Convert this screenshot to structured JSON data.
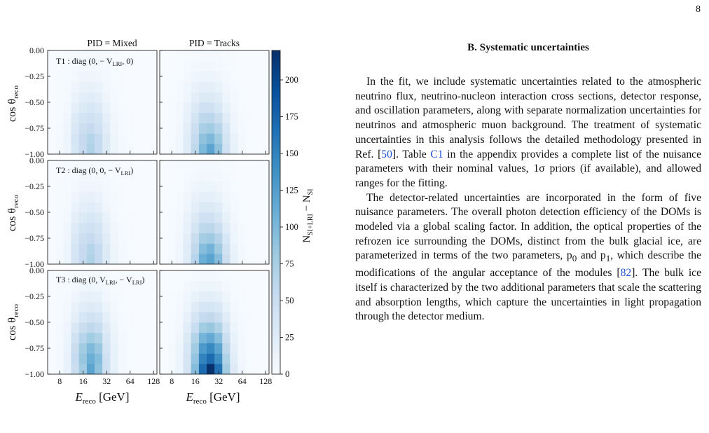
{
  "page_number": "8",
  "figure": {
    "column_titles": [
      "PID = Mixed",
      "PID = Tracks"
    ],
    "panel_labels": [
      {
        "prefix": "T1 : diag (0, − V",
        "sub": "LRI",
        "suffix": ", 0)"
      },
      {
        "prefix": "T2 : diag (0, 0, − V",
        "sub": "LRI",
        "suffix": ")"
      },
      {
        "prefix": "T3 : diag (0, V",
        "sub": "LRI",
        "suffix": ", − V",
        "sub2": "LRI",
        "suffix2": ")"
      }
    ],
    "y_axis_label": {
      "main": "cos θ",
      "sub": "reco"
    },
    "x_axis_label": {
      "main": "E",
      "sub": "reco",
      "unit": " [GeV]"
    },
    "colorbar_label": {
      "main": "N",
      "sub1": "SI+LRI",
      "mid": " − N",
      "sub2": "SI"
    }
  },
  "chart_data": {
    "type": "heatmap",
    "x_edges_gev": [
      5.6,
      7.1,
      8.9,
      11.2,
      14.1,
      17.8,
      22.4,
      28.2,
      35.5,
      44.7,
      56.2,
      70.8,
      89.1,
      112.2,
      141.3
    ],
    "x_ticks": [
      8,
      16,
      32,
      64,
      128
    ],
    "y_edges": [
      -1.0,
      -0.9,
      -0.8,
      -0.7,
      -0.6,
      -0.5,
      -0.4,
      -0.3,
      -0.2,
      -0.1,
      0.0
    ],
    "y_ticks": [
      "0.00",
      "−0.25",
      "−0.50",
      "−0.75",
      "−1.00"
    ],
    "colorbar": {
      "min": 0,
      "max": 220,
      "ticks": [
        0,
        25,
        50,
        75,
        100,
        125,
        150,
        175,
        200
      ],
      "colormap": "Blues"
    },
    "panels": [
      {
        "row": 1,
        "column": "PID = Mixed",
        "values": [
          [
            0,
            3,
            10,
            35,
            55,
            70,
            55,
            30,
            12,
            5,
            2,
            0,
            0,
            0
          ],
          [
            0,
            3,
            12,
            38,
            55,
            65,
            55,
            30,
            12,
            5,
            2,
            0,
            0,
            0
          ],
          [
            0,
            3,
            10,
            32,
            48,
            55,
            45,
            25,
            10,
            4,
            1,
            0,
            0,
            0
          ],
          [
            0,
            2,
            8,
            28,
            40,
            45,
            40,
            20,
            8,
            3,
            1,
            0,
            0,
            0
          ],
          [
            0,
            2,
            6,
            20,
            30,
            35,
            30,
            15,
            6,
            2,
            1,
            0,
            0,
            0
          ],
          [
            0,
            1,
            4,
            14,
            22,
            25,
            20,
            10,
            4,
            2,
            0,
            0,
            0,
            0
          ],
          [
            0,
            1,
            3,
            10,
            15,
            17,
            14,
            7,
            3,
            1,
            0,
            0,
            0,
            0
          ],
          [
            0,
            1,
            2,
            6,
            10,
            10,
            9,
            5,
            2,
            1,
            0,
            0,
            0,
            0
          ],
          [
            0,
            0,
            1,
            4,
            6,
            6,
            5,
            3,
            1,
            0,
            0,
            0,
            0,
            0
          ],
          [
            0,
            0,
            1,
            2,
            3,
            3,
            3,
            2,
            1,
            0,
            0,
            0,
            0,
            0
          ]
        ]
      },
      {
        "row": 1,
        "column": "PID = Tracks",
        "values": [
          [
            0,
            2,
            8,
            25,
            60,
            100,
            120,
            90,
            45,
            18,
            6,
            2,
            0,
            0
          ],
          [
            0,
            2,
            8,
            25,
            55,
            90,
            100,
            80,
            40,
            15,
            5,
            1,
            0,
            0
          ],
          [
            0,
            2,
            7,
            22,
            48,
            75,
            80,
            65,
            35,
            12,
            4,
            1,
            0,
            0
          ],
          [
            0,
            1,
            6,
            18,
            40,
            60,
            62,
            50,
            25,
            10,
            3,
            1,
            0,
            0
          ],
          [
            0,
            1,
            5,
            15,
            30,
            45,
            45,
            35,
            18,
            7,
            2,
            0,
            0,
            0
          ],
          [
            0,
            1,
            4,
            10,
            22,
            30,
            30,
            25,
            12,
            5,
            2,
            0,
            0,
            0
          ],
          [
            0,
            1,
            3,
            8,
            15,
            20,
            20,
            16,
            8,
            3,
            1,
            0,
            0,
            0
          ],
          [
            0,
            0,
            2,
            5,
            10,
            12,
            12,
            10,
            5,
            2,
            1,
            0,
            0,
            0
          ],
          [
            0,
            0,
            1,
            3,
            6,
            7,
            7,
            6,
            3,
            1,
            0,
            0,
            0,
            0
          ],
          [
            0,
            0,
            1,
            2,
            3,
            4,
            4,
            3,
            2,
            1,
            0,
            0,
            0,
            0
          ]
        ]
      },
      {
        "row": 2,
        "column": "PID = Mixed",
        "values": [
          [
            0,
            3,
            12,
            38,
            55,
            70,
            55,
            30,
            12,
            5,
            2,
            0,
            0,
            0
          ],
          [
            0,
            3,
            12,
            38,
            55,
            65,
            55,
            30,
            12,
            5,
            2,
            0,
            0,
            0
          ],
          [
            0,
            3,
            10,
            32,
            48,
            55,
            45,
            25,
            10,
            4,
            1,
            0,
            0,
            0
          ],
          [
            0,
            2,
            8,
            28,
            40,
            45,
            40,
            20,
            8,
            3,
            1,
            0,
            0,
            0
          ],
          [
            0,
            2,
            6,
            20,
            30,
            35,
            30,
            15,
            6,
            2,
            1,
            0,
            0,
            0
          ],
          [
            0,
            1,
            4,
            14,
            22,
            25,
            20,
            10,
            4,
            2,
            0,
            0,
            0,
            0
          ],
          [
            0,
            1,
            3,
            10,
            15,
            17,
            14,
            7,
            3,
            1,
            0,
            0,
            0,
            0
          ],
          [
            0,
            1,
            2,
            6,
            10,
            10,
            9,
            5,
            2,
            1,
            0,
            0,
            0,
            0
          ],
          [
            0,
            0,
            1,
            4,
            6,
            6,
            5,
            3,
            1,
            0,
            0,
            0,
            0,
            0
          ],
          [
            0,
            0,
            1,
            2,
            3,
            3,
            3,
            2,
            1,
            0,
            0,
            0,
            0,
            0
          ]
        ]
      },
      {
        "row": 2,
        "column": "PID = Tracks",
        "values": [
          [
            0,
            2,
            8,
            25,
            65,
            110,
            120,
            95,
            48,
            18,
            6,
            2,
            0,
            0
          ],
          [
            0,
            2,
            8,
            25,
            58,
            95,
            105,
            82,
            42,
            15,
            5,
            1,
            0,
            0
          ],
          [
            0,
            2,
            7,
            22,
            50,
            78,
            82,
            66,
            35,
            12,
            4,
            1,
            0,
            0
          ],
          [
            0,
            1,
            6,
            18,
            40,
            60,
            62,
            50,
            25,
            10,
            3,
            1,
            0,
            0
          ],
          [
            0,
            1,
            5,
            15,
            30,
            45,
            45,
            35,
            18,
            7,
            2,
            0,
            0,
            0
          ],
          [
            0,
            1,
            4,
            10,
            22,
            30,
            30,
            25,
            12,
            5,
            2,
            0,
            0,
            0
          ],
          [
            0,
            1,
            3,
            8,
            15,
            20,
            20,
            16,
            8,
            3,
            1,
            0,
            0,
            0
          ],
          [
            0,
            0,
            2,
            5,
            10,
            12,
            12,
            10,
            5,
            2,
            1,
            0,
            0,
            0
          ],
          [
            0,
            0,
            1,
            3,
            6,
            7,
            7,
            6,
            3,
            1,
            0,
            0,
            0,
            0
          ],
          [
            0,
            0,
            1,
            2,
            3,
            4,
            4,
            3,
            2,
            1,
            0,
            0,
            0,
            0
          ]
        ]
      },
      {
        "row": 3,
        "column": "PID = Mixed",
        "values": [
          [
            0,
            4,
            15,
            50,
            80,
            120,
            90,
            45,
            18,
            6,
            2,
            0,
            0,
            0
          ],
          [
            0,
            4,
            15,
            55,
            85,
            110,
            95,
            45,
            18,
            6,
            2,
            0,
            0,
            0
          ],
          [
            0,
            4,
            14,
            50,
            80,
            100,
            85,
            40,
            16,
            6,
            2,
            0,
            0,
            0
          ],
          [
            0,
            3,
            12,
            42,
            65,
            80,
            70,
            35,
            14,
            5,
            2,
            0,
            0,
            0
          ],
          [
            0,
            3,
            10,
            32,
            50,
            60,
            52,
            28,
            11,
            4,
            1,
            0,
            0,
            0
          ],
          [
            0,
            2,
            7,
            22,
            35,
            42,
            38,
            20,
            8,
            3,
            1,
            0,
            0,
            0
          ],
          [
            0,
            1,
            5,
            15,
            24,
            28,
            25,
            13,
            5,
            2,
            1,
            0,
            0,
            0
          ],
          [
            0,
            1,
            3,
            10,
            15,
            18,
            16,
            8,
            3,
            1,
            0,
            0,
            0,
            0
          ],
          [
            0,
            1,
            2,
            6,
            9,
            10,
            9,
            5,
            2,
            1,
            0,
            0,
            0,
            0
          ],
          [
            0,
            0,
            1,
            3,
            4,
            5,
            5,
            3,
            1,
            0,
            0,
            0,
            0,
            0
          ]
        ]
      },
      {
        "row": 3,
        "column": "PID = Tracks",
        "values": [
          [
            0,
            3,
            12,
            38,
            95,
            170,
            220,
            165,
            80,
            28,
            8,
            2,
            0,
            0
          ],
          [
            0,
            3,
            12,
            38,
            88,
            150,
            170,
            140,
            70,
            24,
            7,
            2,
            0,
            0
          ],
          [
            0,
            3,
            11,
            35,
            80,
            130,
            145,
            120,
            60,
            20,
            6,
            1,
            0,
            0
          ],
          [
            0,
            2,
            9,
            30,
            68,
            105,
            115,
            95,
            48,
            16,
            5,
            1,
            0,
            0
          ],
          [
            0,
            2,
            7,
            24,
            52,
            80,
            85,
            70,
            36,
            12,
            4,
            1,
            0,
            0
          ],
          [
            0,
            1,
            5,
            17,
            38,
            55,
            58,
            48,
            25,
            9,
            3,
            1,
            0,
            0
          ],
          [
            0,
            1,
            4,
            12,
            26,
            36,
            38,
            32,
            16,
            6,
            2,
            0,
            0,
            0
          ],
          [
            0,
            1,
            3,
            8,
            16,
            22,
            23,
            19,
            10,
            4,
            1,
            0,
            0,
            0
          ],
          [
            0,
            0,
            2,
            5,
            9,
            12,
            12,
            10,
            5,
            2,
            1,
            0,
            0,
            0
          ],
          [
            0,
            0,
            1,
            2,
            4,
            5,
            5,
            4,
            2,
            1,
            0,
            0,
            0,
            0
          ]
        ]
      }
    ]
  },
  "article": {
    "section_heading": "B.    Systematic uncertainties",
    "para1_a": "In the fit, we include systematic uncertainties related to the atmospheric neutrino flux, neutrino-nucleon interaction cross sections, detector response, and oscillation parameters, along with separate normalization uncertainties for neutrinos and atmospheric muon background. The treatment of systematic uncertainties in this analysis follows the detailed methodology presented in Ref. [",
    "para1_ref1": "50",
    "para1_b": "]. Table ",
    "para1_ref2": "C1",
    "para1_c": " in the appendix provides a complete list of the nuisance parameters with their nominal values, 1σ priors (if available), and allowed ranges for the fitting.",
    "para2_a": "The detector-related uncertainties are incorporated in the form of five nuisance parameters. The overall photon detection efficiency of the DOMs is modeled via a global scaling factor. In addition, the optical properties of the refrozen ice surrounding the DOMs, distinct from the bulk glacial ice, are parameterized in terms of the two parameters, p",
    "para2_sub0": "0",
    "para2_b": " and p",
    "para2_sub1": "1",
    "para2_c": ", which describe the modifications of the angular acceptance of the modules [",
    "para2_ref": "82",
    "para2_d": "]. The bulk ice itself is characterized by the two additional parameters that scale the scattering and absorption lengths, which capture the uncertainties in light propagation through the detector medium."
  }
}
